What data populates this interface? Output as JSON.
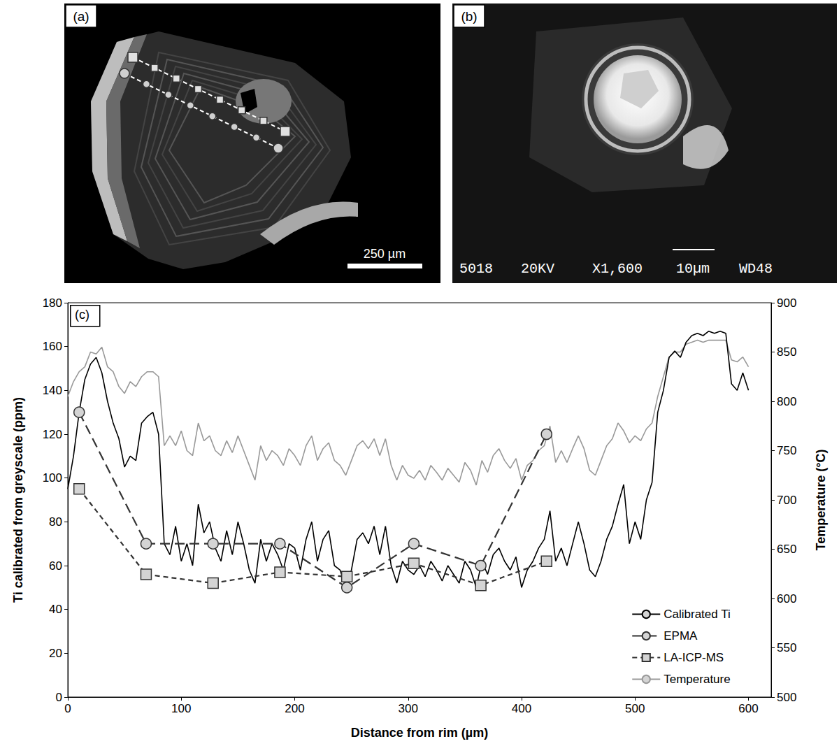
{
  "panels": [
    {
      "label": "(a)",
      "scale_bar": "250 µm"
    },
    {
      "label": "(b)",
      "caption": [
        "5018",
        "20KV",
        "X1,600",
        "10µm",
        "WD48"
      ]
    }
  ],
  "chart_data": {
    "type": "line",
    "panel_label": "(c)",
    "x_label": "Distance from rim (µm)",
    "y_label": "Ti calibrated from greyscale (ppm)",
    "y2_label": "Temperature (°C)",
    "xlim": [
      0,
      620
    ],
    "xticks": [
      0,
      100,
      200,
      300,
      400,
      500,
      600
    ],
    "ylim": [
      0,
      180
    ],
    "yticks": [
      0,
      20,
      40,
      60,
      80,
      100,
      120,
      140,
      160,
      180
    ],
    "y2lim": [
      500,
      900
    ],
    "y2ticks": [
      500,
      550,
      600,
      650,
      700,
      750,
      800,
      850,
      900
    ],
    "grid": false,
    "legend": "lower right",
    "series": [
      {
        "name": "Calibrated Ti",
        "color": "#000000",
        "line_style": "solid",
        "x": [
          0,
          5,
          10,
          15,
          20,
          25,
          30,
          35,
          40,
          45,
          50,
          55,
          60,
          65,
          70,
          75,
          80,
          85,
          90,
          95,
          100,
          105,
          110,
          115,
          120,
          125,
          130,
          135,
          140,
          145,
          150,
          155,
          160,
          165,
          170,
          175,
          180,
          185,
          190,
          195,
          200,
          205,
          210,
          215,
          220,
          225,
          230,
          235,
          240,
          245,
          250,
          255,
          260,
          265,
          270,
          275,
          280,
          285,
          290,
          295,
          300,
          305,
          310,
          315,
          320,
          325,
          330,
          335,
          340,
          345,
          350,
          355,
          360,
          365,
          370,
          375,
          380,
          385,
          390,
          395,
          400,
          405,
          410,
          415,
          420,
          425,
          430,
          435,
          440,
          445,
          450,
          455,
          460,
          465,
          470,
          475,
          480,
          485,
          490,
          495,
          500,
          505,
          510,
          515,
          520,
          525,
          530,
          535,
          540,
          545,
          550,
          555,
          560,
          565,
          570,
          575,
          580,
          585,
          590,
          595,
          600
        ],
        "values": [
          95,
          110,
          130,
          145,
          152,
          155,
          148,
          135,
          125,
          118,
          105,
          110,
          108,
          125,
          128,
          130,
          120,
          70,
          65,
          78,
          62,
          70,
          60,
          88,
          75,
          80,
          68,
          62,
          76,
          65,
          80,
          70,
          58,
          52,
          72,
          62,
          70,
          65,
          58,
          70,
          68,
          58,
          72,
          80,
          62,
          72,
          76,
          60,
          58,
          50,
          58,
          72,
          75,
          70,
          78,
          65,
          78,
          60,
          52,
          62,
          58,
          56,
          60,
          55,
          62,
          58,
          53,
          60,
          56,
          52,
          62,
          58,
          50,
          62,
          56,
          65,
          68,
          62,
          58,
          64,
          50,
          58,
          62,
          68,
          72,
          85,
          62,
          68,
          60,
          70,
          80,
          70,
          58,
          55,
          62,
          72,
          78,
          88,
          97,
          70,
          80,
          72,
          90,
          98,
          130,
          140,
          155,
          158,
          155,
          162,
          165,
          166,
          165,
          167,
          166,
          167,
          166,
          143,
          140,
          148,
          140
        ]
      },
      {
        "name": "EPMA",
        "color": "#333333",
        "marker": "circle",
        "line_style": "dashed",
        "x": [
          10,
          69,
          128,
          187,
          246,
          305,
          364,
          422
        ],
        "values": [
          130,
          70,
          70,
          70,
          50,
          70,
          60,
          120
        ]
      },
      {
        "name": "LA-ICP-MS",
        "color": "#333333",
        "marker": "square",
        "line_style": "dotted",
        "x": [
          10,
          69,
          128,
          187,
          246,
          305,
          364,
          422
        ],
        "values": [
          95,
          56,
          52,
          57,
          55,
          61,
          51,
          62
        ]
      },
      {
        "name": "Temperature",
        "color": "#999999",
        "axis": "y2",
        "line_style": "solid",
        "x": [
          0,
          5,
          10,
          15,
          20,
          25,
          30,
          35,
          40,
          45,
          50,
          55,
          60,
          65,
          70,
          75,
          80,
          85,
          90,
          95,
          100,
          105,
          110,
          115,
          120,
          125,
          130,
          135,
          140,
          145,
          150,
          155,
          160,
          165,
          170,
          175,
          180,
          185,
          190,
          195,
          200,
          205,
          210,
          215,
          220,
          225,
          230,
          235,
          240,
          245,
          250,
          255,
          260,
          265,
          270,
          275,
          280,
          285,
          290,
          295,
          300,
          305,
          310,
          315,
          320,
          325,
          330,
          335,
          340,
          345,
          350,
          355,
          360,
          365,
          370,
          375,
          380,
          385,
          390,
          395,
          400,
          405,
          410,
          415,
          420,
          425,
          430,
          435,
          440,
          445,
          450,
          455,
          460,
          465,
          470,
          475,
          480,
          485,
          490,
          495,
          500,
          505,
          510,
          515,
          520,
          525,
          530,
          535,
          540,
          545,
          550,
          555,
          560,
          565,
          570,
          575,
          580,
          585,
          590,
          595,
          600
        ],
        "values": [
          805,
          820,
          830,
          835,
          850,
          848,
          855,
          835,
          830,
          815,
          808,
          820,
          815,
          825,
          830,
          830,
          825,
          755,
          765,
          755,
          770,
          750,
          745,
          778,
          760,
          765,
          750,
          745,
          760,
          748,
          765,
          750,
          735,
          720,
          755,
          740,
          750,
          745,
          735,
          752,
          745,
          735,
          755,
          765,
          740,
          752,
          758,
          740,
          735,
          725,
          740,
          755,
          760,
          752,
          762,
          745,
          762,
          735,
          720,
          735,
          725,
          722,
          730,
          720,
          735,
          728,
          720,
          732,
          725,
          718,
          738,
          730,
          715,
          740,
          728,
          745,
          752,
          740,
          732,
          742,
          720,
          735,
          740,
          750,
          755,
          775,
          738,
          750,
          738,
          752,
          765,
          752,
          730,
          725,
          740,
          755,
          762,
          778,
          770,
          758,
          765,
          760,
          772,
          778,
          805,
          825,
          845,
          850,
          850,
          858,
          860,
          862,
          860,
          862,
          862,
          862,
          862,
          842,
          840,
          845,
          835
        ]
      }
    ]
  }
}
